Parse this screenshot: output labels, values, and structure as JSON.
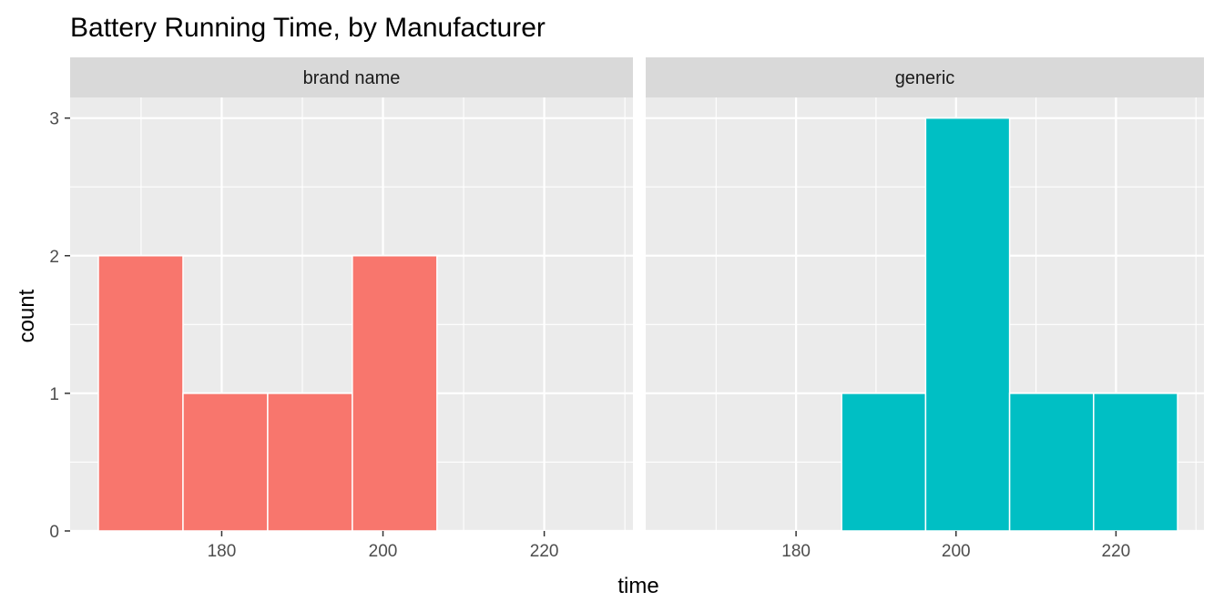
{
  "chart_data": {
    "type": "bar",
    "title": "Battery Running Time, by Manufacturer",
    "xlabel": "time",
    "ylabel": "count",
    "xlim": [
      161.2,
      231.0
    ],
    "ylim": [
      0,
      3.15
    ],
    "x_ticks": [
      180,
      200,
      220
    ],
    "x_minor_ticks": [
      170,
      190,
      210,
      230
    ],
    "y_ticks": [
      0,
      1,
      2,
      3
    ],
    "grid": true,
    "legend": "none",
    "bin_width": 10.5,
    "panels": [
      {
        "name": "brand name",
        "color": "#F8766D",
        "bins": [
          {
            "x_start": 164.7,
            "x_end": 175.2,
            "count": 2
          },
          {
            "x_start": 175.2,
            "x_end": 185.7,
            "count": 1
          },
          {
            "x_start": 185.7,
            "x_end": 196.2,
            "count": 1
          },
          {
            "x_start": 196.2,
            "x_end": 206.7,
            "count": 2
          }
        ]
      },
      {
        "name": "generic",
        "color": "#00BFC4",
        "bins": [
          {
            "x_start": 185.7,
            "x_end": 196.2,
            "count": 1
          },
          {
            "x_start": 196.2,
            "x_end": 206.7,
            "count": 3
          },
          {
            "x_start": 206.7,
            "x_end": 217.2,
            "count": 1
          },
          {
            "x_start": 217.2,
            "x_end": 227.7,
            "count": 1
          }
        ]
      }
    ]
  }
}
